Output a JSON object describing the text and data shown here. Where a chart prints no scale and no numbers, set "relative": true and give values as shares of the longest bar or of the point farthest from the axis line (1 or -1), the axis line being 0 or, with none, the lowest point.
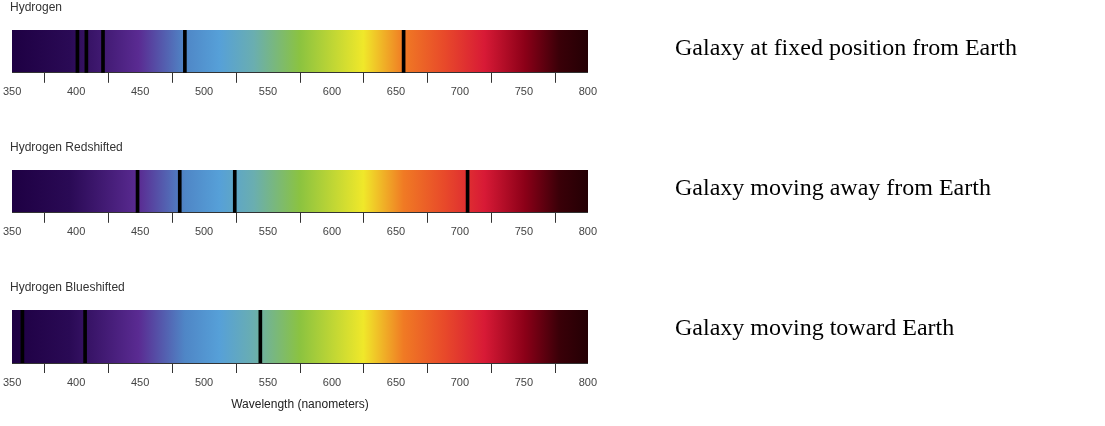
{
  "chart_data": [
    {
      "type": "bar",
      "title": "Hydrogen",
      "relative": true,
      "xlim": [
        350,
        800
      ],
      "xticks": [
        350,
        400,
        450,
        500,
        550,
        600,
        650,
        700,
        750,
        800
      ],
      "series": [
        {
          "color": "#000000",
          "x": [
            401,
            408,
            421,
            485,
            656
          ],
          "values": [
            1,
            1,
            1,
            1,
            1
          ]
        }
      ],
      "annotations": [
        "Galaxy at fixed position from Earth"
      ]
    },
    {
      "type": "bar",
      "title": "Hydrogen Redshifted",
      "relative": true,
      "xlim": [
        350,
        800
      ],
      "xticks": [
        350,
        400,
        450,
        500,
        550,
        600,
        650,
        700,
        750,
        800
      ],
      "series": [
        {
          "color": "#000000",
          "x": [
            448,
            481,
            524,
            706
          ],
          "values": [
            1,
            1,
            1,
            1
          ]
        }
      ],
      "annotations": [
        "Galaxy moving away from Earth"
      ]
    },
    {
      "type": "bar",
      "title": "Hydrogen Blueshifted",
      "xlabel": "Wavelength (nanometers)",
      "relative": true,
      "xlim": [
        350,
        800
      ],
      "xticks": [
        350,
        400,
        450,
        500,
        550,
        600,
        650,
        700,
        750,
        800
      ],
      "series": [
        {
          "color": "#000000",
          "x": [
            358,
            407,
            544
          ],
          "values": [
            1,
            1,
            1
          ]
        }
      ],
      "annotations": [
        "Galaxy moving toward Earth"
      ]
    }
  ]
}
